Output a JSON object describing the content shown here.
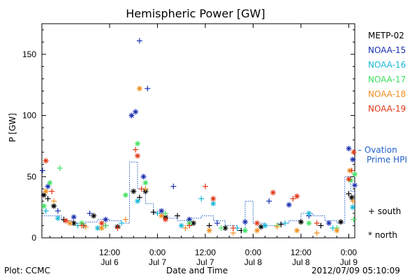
{
  "chart_data": {
    "type": "scatter",
    "title": "Hemispheric Power [GW]",
    "ylabel": "P [GW]",
    "xlabel": "Date and Time",
    "ylim": [
      0,
      175
    ],
    "xlim": [
      "2012-07-05T19:00",
      "2012-07-09T01:30"
    ],
    "yticks": [
      0,
      50,
      100,
      150
    ],
    "xticks": [
      {
        "time": "2012-07-06T12:00",
        "label1": "12:00",
        "label2": "Jul 6"
      },
      {
        "time": "2012-07-07T00:00",
        "label1": "0:00",
        "label2": "Jul 7"
      },
      {
        "time": "2012-07-07T12:00",
        "label1": "12:00",
        "label2": "Jul 7"
      },
      {
        "time": "2012-07-08T00:00",
        "label1": "0:00",
        "label2": "Jul 8"
      },
      {
        "time": "2012-07-08T12:00",
        "label1": "12:00",
        "label2": "Jul 8"
      },
      {
        "time": "2012-07-09T00:00",
        "label1": "0:00",
        "label2": "Jul 9"
      }
    ],
    "marker_legend": [
      {
        "symbol": "+",
        "label": "south"
      },
      {
        "symbol": "*",
        "label": "north"
      }
    ],
    "ovation_label_1": "– Ovation",
    "ovation_label_2": "Prime HPI",
    "ovation_color": "#1f5fc8",
    "ovation_series": {
      "name": "Ovation Prime HPI",
      "points": [
        [
          "2012-07-05T19:00",
          18
        ],
        [
          "2012-07-06T00:00",
          14
        ],
        [
          "2012-07-06T03:00",
          12
        ],
        [
          "2012-07-06T06:00",
          13
        ],
        [
          "2012-07-06T09:00",
          15
        ],
        [
          "2012-07-06T12:00",
          14
        ],
        [
          "2012-07-06T15:00",
          12
        ],
        [
          "2012-07-06T17:00",
          62
        ],
        [
          "2012-07-06T19:00",
          40
        ],
        [
          "2012-07-06T21:00",
          28
        ],
        [
          "2012-07-06T23:00",
          20
        ],
        [
          "2012-07-07T02:00",
          16
        ],
        [
          "2012-07-07T05:00",
          14
        ],
        [
          "2012-07-07T08:00",
          16
        ],
        [
          "2012-07-07T11:00",
          18
        ],
        [
          "2012-07-07T14:00",
          14
        ],
        [
          "2012-07-07T17:00",
          10
        ],
        [
          "2012-07-07T20:00",
          6
        ],
        [
          "2012-07-07T22:00",
          30
        ],
        [
          "2012-07-08T00:00",
          12
        ],
        [
          "2012-07-08T03:00",
          10
        ],
        [
          "2012-07-08T06:00",
          12
        ],
        [
          "2012-07-08T09:00",
          14
        ],
        [
          "2012-07-08T12:00",
          20
        ],
        [
          "2012-07-08T15:00",
          18
        ],
        [
          "2012-07-08T18:00",
          14
        ],
        [
          "2012-07-08T21:00",
          12
        ],
        [
          "2012-07-08T23:00",
          50
        ],
        [
          "2012-07-09T00:30",
          38
        ],
        [
          "2012-07-09T01:30",
          36
        ]
      ]
    },
    "series": [
      {
        "name": "METP-02",
        "color": "#000000",
        "points": [
          [
            "2012-07-05T19:30",
            35,
            "*"
          ],
          [
            "2012-07-05T20:30",
            32,
            "+"
          ],
          [
            "2012-07-05T22:00",
            26,
            "*"
          ],
          [
            "2012-07-06T00:30",
            15,
            "+"
          ],
          [
            "2012-07-06T03:00",
            12,
            "*"
          ],
          [
            "2012-07-06T05:30",
            10,
            "+"
          ],
          [
            "2012-07-06T08:00",
            18,
            "*"
          ],
          [
            "2012-07-06T11:00",
            10,
            "+"
          ],
          [
            "2012-07-06T14:00",
            9,
            "*"
          ],
          [
            "2012-07-06T18:00",
            38,
            "*"
          ],
          [
            "2012-07-06T19:30",
            33,
            "+"
          ],
          [
            "2012-07-06T21:00",
            38,
            "*"
          ],
          [
            "2012-07-06T23:00",
            21,
            "+"
          ],
          [
            "2012-07-07T02:00",
            17,
            "*"
          ],
          [
            "2012-07-07T05:00",
            18,
            "+"
          ],
          [
            "2012-07-07T09:00",
            12,
            "*"
          ],
          [
            "2012-07-07T13:00",
            10,
            "+"
          ],
          [
            "2012-07-07T17:00",
            8,
            "*"
          ],
          [
            "2012-07-07T21:00",
            6,
            "+"
          ],
          [
            "2012-07-08T02:00",
            9,
            "*"
          ],
          [
            "2012-07-08T07:00",
            11,
            "+"
          ],
          [
            "2012-07-08T12:00",
            13,
            "*"
          ],
          [
            "2012-07-08T17:00",
            10,
            "+"
          ],
          [
            "2012-07-08T22:00",
            13,
            "*"
          ],
          [
            "2012-07-09T00:00",
            36,
            "+"
          ],
          [
            "2012-07-09T00:45",
            33,
            "*"
          ]
        ]
      },
      {
        "name": "NOAA-15",
        "color": "#1a2fb0",
        "points": [
          [
            "2012-07-05T19:10",
            55,
            "+"
          ],
          [
            "2012-07-05T20:30",
            42,
            "*"
          ],
          [
            "2012-07-05T23:00",
            22,
            "+"
          ],
          [
            "2012-07-06T03:00",
            17,
            "*"
          ],
          [
            "2012-07-06T07:00",
            20,
            "+"
          ],
          [
            "2012-07-06T11:00",
            15,
            "*"
          ],
          [
            "2012-07-06T17:30",
            100,
            "*"
          ],
          [
            "2012-07-06T18:30",
            103,
            "*"
          ],
          [
            "2012-07-06T19:30",
            161,
            "+"
          ],
          [
            "2012-07-06T21:30",
            122,
            "+"
          ],
          [
            "2012-07-06T20:30",
            50,
            "*"
          ],
          [
            "2012-07-07T01:00",
            22,
            "*"
          ],
          [
            "2012-07-07T04:00",
            42,
            "+"
          ],
          [
            "2012-07-07T08:00",
            15,
            "*"
          ],
          [
            "2012-07-07T15:00",
            12,
            "+"
          ],
          [
            "2012-07-07T22:00",
            13,
            "*"
          ],
          [
            "2012-07-08T04:00",
            30,
            "+"
          ],
          [
            "2012-07-08T09:00",
            27,
            "*"
          ],
          [
            "2012-07-08T14:00",
            18,
            "+"
          ],
          [
            "2012-07-08T19:00",
            12,
            "*"
          ],
          [
            "2012-07-09T00:00",
            73,
            "*"
          ],
          [
            "2012-07-09T01:00",
            64,
            "*"
          ],
          [
            "2012-07-09T01:30",
            43,
            "*"
          ]
        ]
      },
      {
        "name": "NOAA-16",
        "color": "#18b8d8",
        "points": [
          [
            "2012-07-05T20:00",
            22,
            "+"
          ],
          [
            "2012-07-05T23:00",
            16,
            "*"
          ],
          [
            "2012-07-06T04:00",
            10,
            "+"
          ],
          [
            "2012-07-06T09:00",
            8,
            "*"
          ],
          [
            "2012-07-06T15:00",
            12,
            "+"
          ],
          [
            "2012-07-06T19:00",
            30,
            "*"
          ],
          [
            "2012-07-07T00:00",
            20,
            "+"
          ],
          [
            "2012-07-07T06:00",
            10,
            "*"
          ],
          [
            "2012-07-07T11:00",
            32,
            "+"
          ],
          [
            "2012-07-07T14:00",
            28,
            "*"
          ],
          [
            "2012-07-07T20:00",
            8,
            "+"
          ],
          [
            "2012-07-08T03:00",
            10,
            "*"
          ],
          [
            "2012-07-08T08:00",
            12,
            "+"
          ],
          [
            "2012-07-08T14:00",
            20,
            "*"
          ],
          [
            "2012-07-08T20:00",
            8,
            "+"
          ],
          [
            "2012-07-09T01:00",
            25,
            "*"
          ]
        ]
      },
      {
        "name": "NOAA-17",
        "color": "#3ee060",
        "points": [
          [
            "2012-07-05T19:30",
            26,
            "*"
          ],
          [
            "2012-07-05T21:00",
            45,
            "*"
          ],
          [
            "2012-07-05T23:30",
            57,
            "+"
          ],
          [
            "2012-07-06T05:00",
            12,
            "*"
          ],
          [
            "2012-07-06T11:00",
            10,
            "+"
          ],
          [
            "2012-07-06T16:00",
            35,
            "*"
          ],
          [
            "2012-07-06T19:00",
            77,
            "*"
          ],
          [
            "2012-07-06T21:00",
            45,
            "*"
          ],
          [
            "2012-07-07T02:00",
            20,
            "+"
          ],
          [
            "2012-07-07T08:00",
            12,
            "*"
          ],
          [
            "2012-07-07T16:00",
            8,
            "+"
          ],
          [
            "2012-07-07T22:00",
            6,
            "*"
          ],
          [
            "2012-07-08T06:00",
            10,
            "+"
          ],
          [
            "2012-07-08T14:00",
            12,
            "*"
          ],
          [
            "2012-07-08T21:00",
            8,
            "+"
          ],
          [
            "2012-07-09T00:30",
            47,
            "*"
          ],
          [
            "2012-07-09T01:30",
            52,
            "*"
          ],
          [
            "2012-07-09T01:15",
            15,
            "+"
          ]
        ]
      },
      {
        "name": "NOAA-18",
        "color": "#f09020",
        "points": [
          [
            "2012-07-05T20:00",
            38,
            "*"
          ],
          [
            "2012-07-05T22:00",
            30,
            "+"
          ],
          [
            "2012-07-06T02:00",
            12,
            "*"
          ],
          [
            "2012-07-06T06:00",
            9,
            "+"
          ],
          [
            "2012-07-06T10:00",
            8,
            "*"
          ],
          [
            "2012-07-06T16:00",
            15,
            "+"
          ],
          [
            "2012-07-06T19:30",
            122,
            "*"
          ],
          [
            "2012-07-06T21:00",
            40,
            "+"
          ],
          [
            "2012-07-07T01:00",
            18,
            "*"
          ],
          [
            "2012-07-07T07:00",
            8,
            "+"
          ],
          [
            "2012-07-07T13:00",
            6,
            "*"
          ],
          [
            "2012-07-07T19:00",
            4,
            "+"
          ],
          [
            "2012-07-08T01:00",
            6,
            "*"
          ],
          [
            "2012-07-08T06:00",
            9,
            "+"
          ],
          [
            "2012-07-08T11:00",
            6,
            "*"
          ],
          [
            "2012-07-08T16:00",
            4,
            "+"
          ],
          [
            "2012-07-08T21:00",
            6,
            "*"
          ],
          [
            "2012-07-09T00:15",
            55,
            "*"
          ],
          [
            "2012-07-09T01:00",
            30,
            "+"
          ]
        ]
      },
      {
        "name": "NOAA-19",
        "color": "#e03818",
        "points": [
          [
            "2012-07-05T20:00",
            63,
            "*"
          ],
          [
            "2012-07-05T21:30",
            38,
            "+"
          ],
          [
            "2012-07-06T01:00",
            14,
            "*"
          ],
          [
            "2012-07-06T05:00",
            10,
            "+"
          ],
          [
            "2012-07-06T10:00",
            12,
            "*"
          ],
          [
            "2012-07-06T14:00",
            8,
            "+"
          ],
          [
            "2012-07-06T18:30",
            72,
            "+"
          ],
          [
            "2012-07-06T19:00",
            67,
            "*"
          ],
          [
            "2012-07-06T20:00",
            40,
            "+"
          ],
          [
            "2012-07-07T02:00",
            15,
            "*"
          ],
          [
            "2012-07-07T08:00",
            10,
            "+"
          ],
          [
            "2012-07-07T12:00",
            42,
            "+"
          ],
          [
            "2012-07-07T14:00",
            32,
            "*"
          ],
          [
            "2012-07-07T19:00",
            8,
            "+"
          ],
          [
            "2012-07-08T01:00",
            12,
            "*"
          ],
          [
            "2012-07-08T05:00",
            37,
            "*"
          ],
          [
            "2012-07-08T10:00",
            32,
            "+"
          ],
          [
            "2012-07-08T11:00",
            34,
            "*"
          ],
          [
            "2012-07-08T16:00",
            12,
            "+"
          ],
          [
            "2012-07-09T00:00",
            48,
            "*"
          ],
          [
            "2012-07-09T00:45",
            55,
            "+"
          ],
          [
            "2012-07-09T01:15",
            70,
            "*"
          ]
        ]
      }
    ]
  },
  "footer": {
    "plot_source": "Plot: CCMC",
    "timestamp": "2012/07/09 05:10:09"
  }
}
